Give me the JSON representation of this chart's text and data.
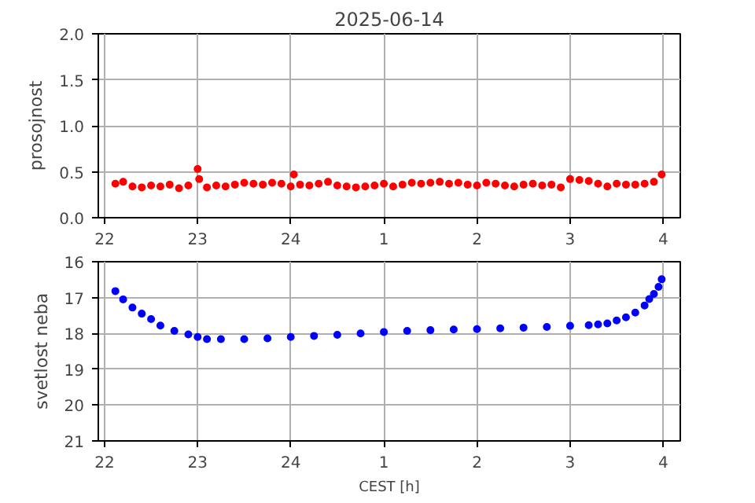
{
  "chart_data": [
    {
      "type": "scatter",
      "title": "2025-06-14",
      "ylabel": "prosojnost",
      "marker": "circle",
      "grid": true,
      "x": [
        "2025-06-14T22:07",
        "2025-06-14T22:12",
        "2025-06-14T22:18",
        "2025-06-14T22:24",
        "2025-06-14T22:30",
        "2025-06-14T22:36",
        "2025-06-14T22:42",
        "2025-06-14T22:48",
        "2025-06-14T22:54",
        "2025-06-14T23:00",
        "2025-06-14T23:01",
        "2025-06-14T23:06",
        "2025-06-14T23:12",
        "2025-06-14T23:18",
        "2025-06-14T23:24",
        "2025-06-14T23:30",
        "2025-06-14T23:36",
        "2025-06-14T23:42",
        "2025-06-14T23:48",
        "2025-06-14T23:54",
        "2025-06-15T00:00",
        "2025-06-15T00:02",
        "2025-06-15T00:06",
        "2025-06-15T00:12",
        "2025-06-15T00:18",
        "2025-06-15T00:24",
        "2025-06-15T00:30",
        "2025-06-15T00:36",
        "2025-06-15T00:42",
        "2025-06-15T00:48",
        "2025-06-15T00:54",
        "2025-06-15T01:00",
        "2025-06-15T01:06",
        "2025-06-15T01:12",
        "2025-06-15T01:18",
        "2025-06-15T01:24",
        "2025-06-15T01:30",
        "2025-06-15T01:36",
        "2025-06-15T01:42",
        "2025-06-15T01:48",
        "2025-06-15T01:54",
        "2025-06-15T02:00",
        "2025-06-15T02:06",
        "2025-06-15T02:12",
        "2025-06-15T02:18",
        "2025-06-15T02:24",
        "2025-06-15T02:30",
        "2025-06-15T02:36",
        "2025-06-15T02:42",
        "2025-06-15T02:48",
        "2025-06-15T02:54",
        "2025-06-15T03:00",
        "2025-06-15T03:06",
        "2025-06-15T03:12",
        "2025-06-15T03:18",
        "2025-06-15T03:24",
        "2025-06-15T03:30",
        "2025-06-15T03:36",
        "2025-06-15T03:42",
        "2025-06-15T03:48",
        "2025-06-15T03:54",
        "2025-06-15T03:59"
      ],
      "series": [
        {
          "color": "#ff0000",
          "values": [
            0.37,
            0.39,
            0.34,
            0.33,
            0.35,
            0.34,
            0.36,
            0.32,
            0.35,
            0.53,
            0.42,
            0.33,
            0.35,
            0.34,
            0.36,
            0.38,
            0.37,
            0.36,
            0.38,
            0.37,
            0.34,
            0.47,
            0.36,
            0.35,
            0.37,
            0.39,
            0.35,
            0.34,
            0.33,
            0.34,
            0.35,
            0.37,
            0.34,
            0.36,
            0.38,
            0.37,
            0.38,
            0.39,
            0.37,
            0.38,
            0.36,
            0.35,
            0.38,
            0.37,
            0.35,
            0.34,
            0.36,
            0.37,
            0.35,
            0.36,
            0.33,
            0.42,
            0.41,
            0.4,
            0.37,
            0.34,
            0.37,
            0.36,
            0.36,
            0.37,
            0.39,
            0.47
          ]
        }
      ],
      "xlim": [
        "2025-06-14T21:56",
        "2025-06-15T04:11"
      ],
      "xticks": [
        {
          "value": "2025-06-14T22:00",
          "label": "22"
        },
        {
          "value": "2025-06-14T23:00",
          "label": "23"
        },
        {
          "value": "2025-06-15T00:00",
          "label": "24"
        },
        {
          "value": "2025-06-15T01:00",
          "label": "1"
        },
        {
          "value": "2025-06-15T02:00",
          "label": "2"
        },
        {
          "value": "2025-06-15T03:00",
          "label": "3"
        },
        {
          "value": "2025-06-15T04:00",
          "label": "4"
        }
      ],
      "ylim": [
        0,
        2
      ],
      "yticks": [
        {
          "value": 0,
          "label": "0.0"
        },
        {
          "value": 0.5,
          "label": "0.5"
        },
        {
          "value": 1,
          "label": "1.0"
        },
        {
          "value": 1.5,
          "label": "1.5"
        },
        {
          "value": 2,
          "label": "2.0"
        }
      ]
    },
    {
      "type": "scatter",
      "ylabel": "svetlost neba",
      "xlabel": "CEST [h]",
      "marker": "circle",
      "grid": true,
      "x": [
        "2025-06-14T22:07",
        "2025-06-14T22:12",
        "2025-06-14T22:18",
        "2025-06-14T22:24",
        "2025-06-14T22:30",
        "2025-06-14T22:36",
        "2025-06-14T22:45",
        "2025-06-14T22:54",
        "2025-06-14T23:00",
        "2025-06-14T23:06",
        "2025-06-14T23:15",
        "2025-06-14T23:30",
        "2025-06-14T23:45",
        "2025-06-15T00:00",
        "2025-06-15T00:15",
        "2025-06-15T00:30",
        "2025-06-15T00:45",
        "2025-06-15T01:00",
        "2025-06-15T01:15",
        "2025-06-15T01:30",
        "2025-06-15T01:45",
        "2025-06-15T02:00",
        "2025-06-15T02:15",
        "2025-06-15T02:30",
        "2025-06-15T02:45",
        "2025-06-15T03:00",
        "2025-06-15T03:12",
        "2025-06-15T03:18",
        "2025-06-15T03:24",
        "2025-06-15T03:30",
        "2025-06-15T03:36",
        "2025-06-15T03:42",
        "2025-06-15T03:48",
        "2025-06-15T03:51",
        "2025-06-15T03:54",
        "2025-06-15T03:57",
        "2025-06-15T03:59"
      ],
      "series": [
        {
          "color": "#0000ff",
          "values": [
            16.82,
            17.05,
            17.28,
            17.45,
            17.6,
            17.78,
            17.93,
            18.03,
            18.1,
            18.16,
            18.16,
            18.16,
            18.14,
            18.1,
            18.07,
            18.04,
            18.0,
            17.96,
            17.93,
            17.91,
            17.89,
            17.88,
            17.86,
            17.84,
            17.82,
            17.79,
            17.77,
            17.75,
            17.72,
            17.64,
            17.55,
            17.42,
            17.22,
            17.04,
            16.9,
            16.7,
            16.49
          ]
        }
      ],
      "xlim": [
        "2025-06-14T21:56",
        "2025-06-15T04:11"
      ],
      "xticks": [
        {
          "value": "2025-06-14T22:00",
          "label": "22"
        },
        {
          "value": "2025-06-14T23:00",
          "label": "23"
        },
        {
          "value": "2025-06-15T00:00",
          "label": "24"
        },
        {
          "value": "2025-06-15T01:00",
          "label": "1"
        },
        {
          "value": "2025-06-15T02:00",
          "label": "2"
        },
        {
          "value": "2025-06-15T03:00",
          "label": "3"
        },
        {
          "value": "2025-06-15T04:00",
          "label": "4"
        }
      ],
      "ylim": [
        21,
        16
      ],
      "yticks": [
        16,
        17,
        18,
        19,
        20,
        21
      ]
    }
  ]
}
